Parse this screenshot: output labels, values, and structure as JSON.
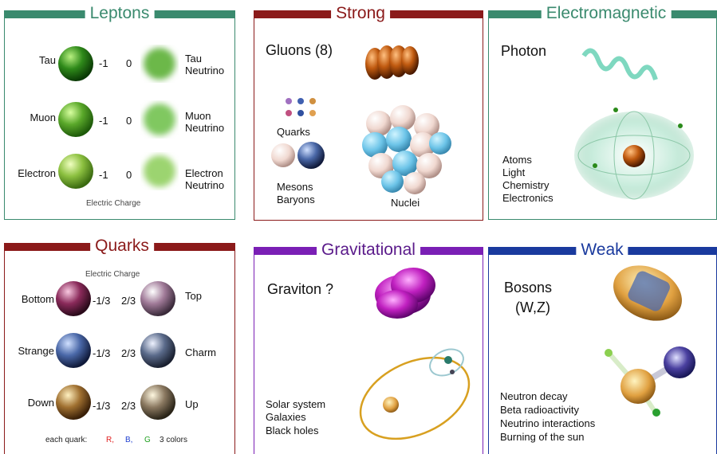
{
  "leptons": {
    "title": "Leptons",
    "particles": [
      {
        "name": "Tau",
        "charge": "-1",
        "neutrino_charge": "0",
        "neutrino": "Tau Neutrino"
      },
      {
        "name": "Muon",
        "charge": "-1",
        "neutrino_charge": "0",
        "neutrino": "Muon Neutrino"
      },
      {
        "name": "Electron",
        "charge": "-1",
        "neutrino_charge": "0",
        "neutrino": "Electron Neutrino"
      }
    ],
    "caption": "Electric Charge"
  },
  "strong": {
    "title": "Strong",
    "carrier": "Gluons (8)",
    "labels": [
      "Quarks",
      "Mesons",
      "Baryons",
      "Nuclei"
    ]
  },
  "electromagnetic": {
    "title": "Electromagnetic",
    "carrier": "Photon",
    "examples": [
      "Atoms",
      "Light",
      "Chemistry",
      "Electronics"
    ]
  },
  "quarks": {
    "title": "Quarks",
    "caption": "Electric Charge",
    "pairs": [
      {
        "down_type": "Bottom",
        "down_charge": "-1/3",
        "up_charge": "2/3",
        "up_type": "Top"
      },
      {
        "down_type": "Strange",
        "down_charge": "-1/3",
        "up_charge": "2/3",
        "up_type": "Charm"
      },
      {
        "down_type": "Down",
        "down_charge": "-1/3",
        "up_charge": "2/3",
        "up_type": "Up"
      }
    ],
    "colors_note": {
      "prefix": "each quark:",
      "colors": [
        "R,",
        "B,",
        "G"
      ],
      "suffix": "3 colors"
    }
  },
  "gravitational": {
    "title": "Gravitational",
    "carrier": "Graviton ?",
    "examples": [
      "Solar system",
      "Galaxies",
      "Black holes"
    ]
  },
  "weak": {
    "title": "Weak",
    "carrier": [
      "Bosons",
      "(W,Z)"
    ],
    "examples": [
      "Neutron decay",
      "Beta radioactivity",
      "Neutrino interactions",
      "Burning of the sun"
    ]
  }
}
